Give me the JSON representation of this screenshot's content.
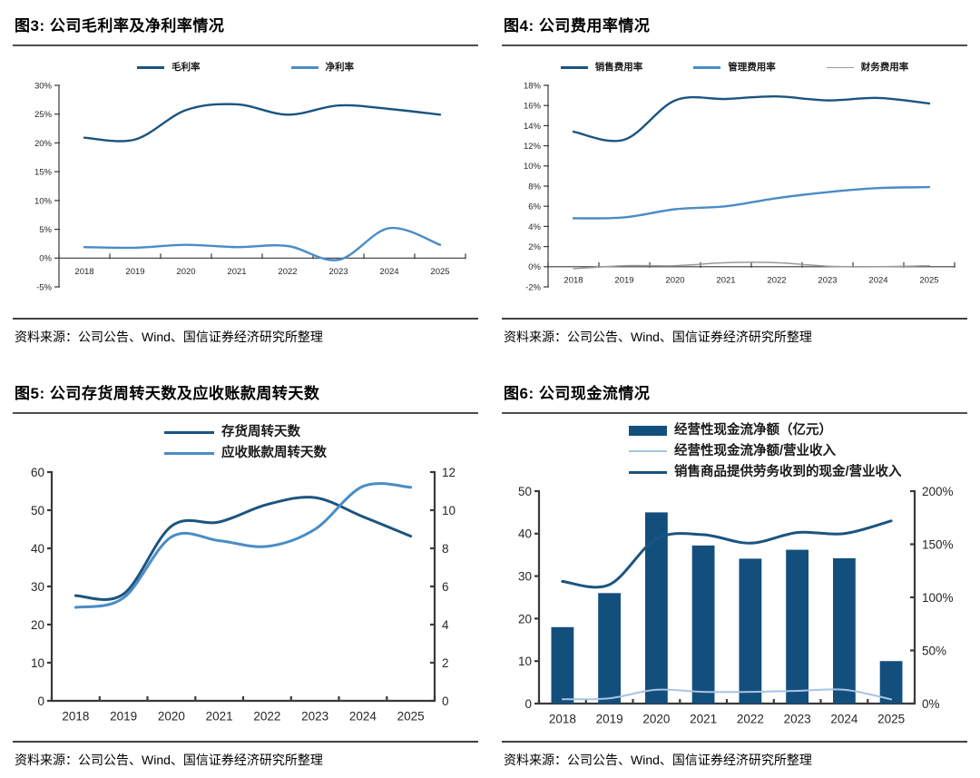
{
  "page": {
    "background": "#ffffff"
  },
  "colors": {
    "dark_blue": "#1B5480",
    "bar_blue": "#134F7D",
    "medium_blue": "#4A8CC6",
    "pale_blue": "#A8C3E4",
    "gray": "#9A9A9A",
    "axis": "#3a3a3a"
  },
  "chart_data": [
    {
      "type": "line",
      "title": "图3: 公司毛利率及净利率情况",
      "source": "资料来源：公司公告、Wind、国信证券经济研究所整理",
      "categories": [
        "2018",
        "2019",
        "2020",
        "2021",
        "2022",
        "2023",
        "2024",
        "2025"
      ],
      "left_axis": {
        "min": -5,
        "max": 30,
        "step": 5,
        "suffix": "%"
      },
      "legend": {
        "layout": "row",
        "position": "top-center"
      },
      "grid": false,
      "series": [
        {
          "name": "毛利率",
          "type": "line",
          "axis": "left",
          "color": "#1B5480",
          "width": 2.4,
          "values": [
            20.9,
            20.6,
            25.7,
            26.7,
            24.9,
            26.5,
            25.9,
            24.9
          ]
        },
        {
          "name": "净利率",
          "type": "line",
          "axis": "left",
          "color": "#4A8CC6",
          "width": 2.4,
          "values": [
            1.9,
            1.8,
            2.3,
            1.9,
            2.1,
            -0.3,
            5.2,
            2.3
          ]
        }
      ]
    },
    {
      "type": "line",
      "title": "图4: 公司费用率情况",
      "source": "资料来源：公司公告、Wind、国信证券经济研究所整理",
      "categories": [
        "2018",
        "2019",
        "2020",
        "2021",
        "2022",
        "2023",
        "2024",
        "2025"
      ],
      "left_axis": {
        "min": -2,
        "max": 18,
        "step": 2,
        "suffix": "%"
      },
      "legend": {
        "layout": "row",
        "position": "top-center"
      },
      "grid": false,
      "series": [
        {
          "name": "销售费用率",
          "type": "line",
          "axis": "left",
          "color": "#1B5480",
          "width": 2.4,
          "values": [
            13.4,
            12.6,
            16.5,
            16.65,
            16.9,
            16.5,
            16.75,
            16.2
          ]
        },
        {
          "name": "管理费用率",
          "type": "line",
          "axis": "left",
          "color": "#4A8CC6",
          "width": 2.4,
          "values": [
            4.8,
            4.9,
            5.7,
            6.0,
            6.8,
            7.4,
            7.8,
            7.9
          ]
        },
        {
          "name": "财务费用率",
          "type": "line",
          "axis": "left",
          "color": "#9A9A9A",
          "width": 1.5,
          "values": [
            -0.2,
            0.1,
            0.1,
            0.4,
            0.4,
            0.05,
            0.0,
            0.1
          ]
        }
      ]
    },
    {
      "type": "line",
      "title": "图5: 公司存货周转天数及应收账款周转天数",
      "source": "资料来源：公司公告、Wind、国信证券经济研究所整理",
      "categories": [
        "2018",
        "2019",
        "2020",
        "2021",
        "2022",
        "2023",
        "2024",
        "2025"
      ],
      "left_axis": {
        "min": 0,
        "max": 60,
        "step": 10,
        "suffix": ""
      },
      "right_axis": {
        "min": 0,
        "max": 12,
        "step": 2,
        "suffix": ""
      },
      "legend": {
        "layout": "column",
        "position": "top-center"
      },
      "grid": false,
      "series": [
        {
          "name": "存货周转天数",
          "type": "line",
          "axis": "left",
          "color": "#1B5480",
          "width": 3,
          "values": [
            27.6,
            28.0,
            45.8,
            46.9,
            51.5,
            53.3,
            48.3,
            43.2
          ]
        },
        {
          "name": "应收账款周转天数",
          "type": "line",
          "axis": "right",
          "color": "#4A8CC6",
          "width": 3,
          "values": [
            4.9,
            5.4,
            8.6,
            8.4,
            8.1,
            9.0,
            11.25,
            11.2
          ]
        }
      ]
    },
    {
      "type": "bar-line",
      "title": "图6: 公司现金流情况",
      "source": "资料来源：公司公告、Wind、国信证券经济研究所整理",
      "categories": [
        "2018",
        "2019",
        "2020",
        "2021",
        "2022",
        "2023",
        "2024",
        "2025"
      ],
      "left_axis": {
        "min": 0,
        "max": 50,
        "step": 10,
        "suffix": ""
      },
      "right_axis": {
        "min": 0,
        "max": 200,
        "step": 50,
        "suffix": "%"
      },
      "legend": {
        "layout": "column",
        "position": "top-left"
      },
      "grid": false,
      "series": [
        {
          "name": "经营性现金流净额（亿元）",
          "type": "bar",
          "axis": "left",
          "color": "#134F7D",
          "values": [
            18,
            26,
            45,
            37.2,
            34.1,
            36.2,
            34.2,
            10
          ]
        },
        {
          "name": "经营性现金流净额/营业收入",
          "type": "line",
          "axis": "right",
          "color": "#A8C3E4",
          "width": 2,
          "values": [
            4,
            5,
            13,
            11,
            11,
            12,
            13,
            4
          ]
        },
        {
          "name": "销售商品提供劳务收到的现金/营业收入",
          "type": "line",
          "axis": "right",
          "color": "#1B5480",
          "width": 3,
          "values": [
            115,
            112,
            155,
            159,
            151,
            161,
            160,
            172
          ]
        }
      ]
    }
  ]
}
